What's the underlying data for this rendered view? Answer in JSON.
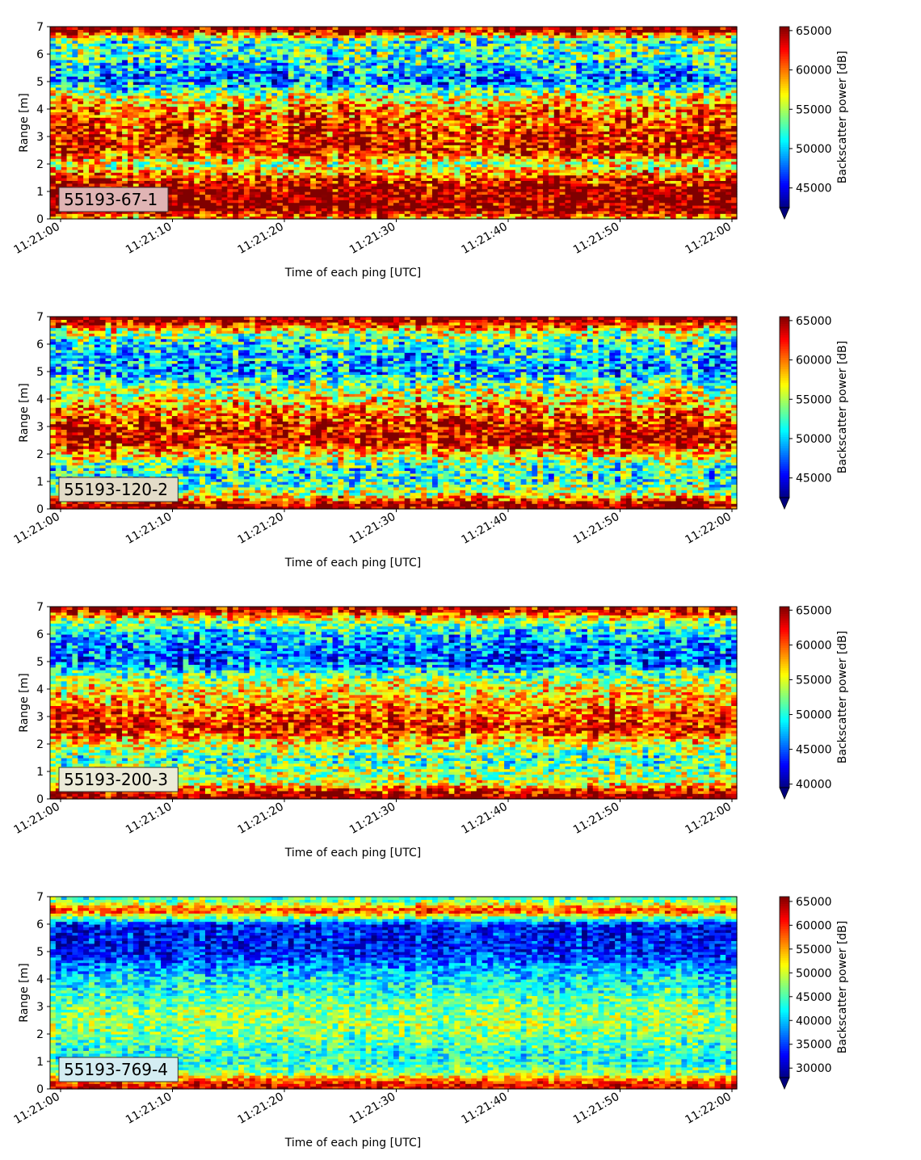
{
  "figure": {
    "xlabel": "Time of each ping [UTC]",
    "ylabel": "Range [m]",
    "colorbar_label": "Backscatter power [dB]",
    "colormap": "jet"
  },
  "chart_data": [
    {
      "type": "heatmap",
      "label": "55193-67-1",
      "label_box_color": "#e0b4b4",
      "xlabel": "Time of each ping [UTC]",
      "ylabel": "Range [m]",
      "xticks": [
        "11:21:00",
        "11:21:10",
        "11:21:20",
        "11:21:30",
        "11:21:40",
        "11:21:50",
        "11:22:00"
      ],
      "yticks": [
        0,
        1,
        2,
        3,
        4,
        5,
        6,
        7
      ],
      "ylim": [
        0,
        7
      ],
      "colorbar": {
        "label": "Backscatter power [dB]",
        "min": 42500,
        "max": 65500,
        "ticks": [
          45000,
          50000,
          55000,
          60000,
          65000
        ],
        "extend": "min"
      },
      "range_profile_m": [
        0.1,
        0.3,
        0.6,
        1.0,
        1.5,
        2.0,
        2.5,
        3.0,
        3.5,
        4.0,
        4.5,
        5.0,
        5.5,
        6.0,
        6.5,
        6.9
      ],
      "range_profile_db": [
        60000,
        65500,
        65500,
        65500,
        62000,
        55000,
        63000,
        63000,
        61000,
        60000,
        56000,
        48000,
        50000,
        53000,
        52000,
        65500
      ]
    },
    {
      "type": "heatmap",
      "label": "55193-120-2",
      "label_box_color": "#e3dcc8",
      "xlabel": "Time of each ping [UTC]",
      "ylabel": "Range [m]",
      "xticks": [
        "11:21:00",
        "11:21:10",
        "11:21:20",
        "11:21:30",
        "11:21:40",
        "11:21:50",
        "11:22:00"
      ],
      "yticks": [
        0,
        1,
        2,
        3,
        4,
        5,
        6,
        7
      ],
      "ylim": [
        0,
        7
      ],
      "colorbar": {
        "label": "Backscatter power [dB]",
        "min": 42500,
        "max": 65500,
        "ticks": [
          45000,
          50000,
          55000,
          60000,
          65000
        ],
        "extend": "min"
      },
      "range_profile_m": [
        0.1,
        0.3,
        0.6,
        1.0,
        1.5,
        2.0,
        2.5,
        3.0,
        3.5,
        4.0,
        4.5,
        5.0,
        5.5,
        6.0,
        6.5,
        6.9
      ],
      "range_profile_db": [
        65500,
        62000,
        55000,
        52000,
        52000,
        58000,
        64000,
        63000,
        60000,
        57000,
        54000,
        49000,
        50000,
        51000,
        56000,
        65500
      ]
    },
    {
      "type": "heatmap",
      "label": "55193-200-3",
      "label_box_color": "#ecebd9",
      "xlabel": "Time of each ping [UTC]",
      "ylabel": "Range [m]",
      "xticks": [
        "11:21:00",
        "11:21:10",
        "11:21:20",
        "11:21:30",
        "11:21:40",
        "11:21:50",
        "11:22:00"
      ],
      "yticks": [
        0,
        1,
        2,
        3,
        4,
        5,
        6,
        7
      ],
      "ylim": [
        0,
        7
      ],
      "colorbar": {
        "label": "Backscatter power [dB]",
        "min": 39500,
        "max": 65500,
        "ticks": [
          40000,
          45000,
          50000,
          55000,
          60000,
          65000
        ],
        "extend": "min"
      },
      "range_profile_m": [
        0.1,
        0.3,
        0.6,
        1.0,
        1.5,
        2.0,
        2.5,
        3.0,
        3.5,
        4.0,
        4.5,
        5.0,
        5.5,
        6.0,
        6.5,
        6.9
      ],
      "range_profile_db": [
        65500,
        62000,
        55000,
        53000,
        51000,
        55000,
        62000,
        61000,
        58000,
        56000,
        52000,
        45000,
        46000,
        48000,
        53000,
        64000
      ]
    },
    {
      "type": "heatmap",
      "label": "55193-769-4",
      "label_box_color": "#d4edf2",
      "xlabel": "Time of each ping [UTC]",
      "ylabel": "Range [m]",
      "xticks": [
        "11:21:00",
        "11:21:10",
        "11:21:20",
        "11:21:30",
        "11:21:40",
        "11:21:50",
        "11:22:00"
      ],
      "yticks": [
        0,
        1,
        2,
        3,
        4,
        5,
        6,
        7
      ],
      "ylim": [
        0,
        7
      ],
      "colorbar": {
        "label": "Backscatter power [dB]",
        "min": 28000,
        "max": 66000,
        "ticks": [
          30000,
          35000,
          40000,
          45000,
          50000,
          55000,
          60000,
          65000
        ],
        "extend": "min"
      },
      "range_profile_m": [
        0.1,
        0.3,
        0.6,
        1.0,
        1.5,
        2.0,
        2.5,
        3.0,
        3.5,
        4.0,
        4.5,
        5.0,
        5.5,
        6.0,
        6.5,
        6.9
      ],
      "range_profile_db": [
        62000,
        58000,
        47000,
        43000,
        44000,
        47000,
        48000,
        47000,
        44000,
        42000,
        38000,
        34000,
        33000,
        34000,
        60000,
        45000
      ]
    }
  ]
}
